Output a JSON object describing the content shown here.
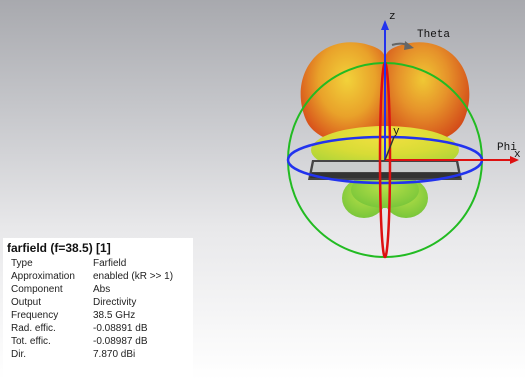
{
  "view": {
    "axes": {
      "z": "z",
      "theta": "Theta",
      "phi": "Phi",
      "x": "x",
      "y": "y"
    }
  },
  "info": {
    "title": "farfield (f=38.5) [1]",
    "rows": [
      {
        "key": "Type",
        "value": "Farfield"
      },
      {
        "key": "Approximation",
        "value": "enabled (kR >> 1)"
      },
      {
        "key": "Component",
        "value": "Abs"
      },
      {
        "key": "Output",
        "value": "Directivity"
      },
      {
        "key": "Frequency",
        "value": "38.5 GHz"
      },
      {
        "key": "Rad. effic.",
        "value": "-0.08891 dB"
      },
      {
        "key": "Tot. effic.",
        "value": "-0.08987 dB"
      },
      {
        "key": "Dir.",
        "value": "7.870 dBi"
      }
    ]
  },
  "colors": {
    "green_ring": "#22bb22",
    "blue_ring": "#2233ee",
    "red_axis": "#dd1111",
    "pattern_high": "#d94a1a",
    "pattern_mid": "#e8c020",
    "pattern_low": "#8fd03a"
  }
}
